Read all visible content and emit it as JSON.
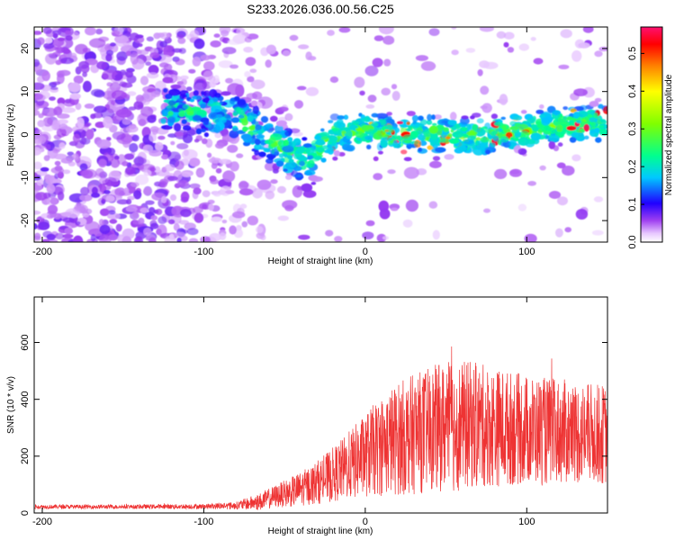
{
  "title": "S233.2026.036.00.56.C25",
  "chart_data": [
    {
      "type": "heatmap",
      "name": "spectrogram",
      "xlabel": "Height of straight line (km)",
      "ylabel": "Frequency (Hz)",
      "xlim": [
        -205,
        150
      ],
      "ylim": [
        -25,
        25
      ],
      "xticks": [
        -200,
        -100,
        0,
        100
      ],
      "yticks": [
        -20,
        -10,
        0,
        10,
        20
      ],
      "colorbar": {
        "label": "Normalized spectral amplitude",
        "range": [
          0.0,
          0.57
        ],
        "ticks": [
          0.0,
          0.1,
          0.2,
          0.3,
          0.4,
          0.5
        ],
        "colors": [
          "#ffffff",
          "#d9a6ff",
          "#8a2be2",
          "#0000ff",
          "#00bfff",
          "#00ff80",
          "#7fff00",
          "#ffff00",
          "#ff8c00",
          "#ff0000",
          "#ff1493"
        ]
      },
      "signal_track": {
        "x": [
          -120,
          -100,
          -80,
          -60,
          -45,
          -35,
          -20,
          0,
          20,
          40,
          60,
          80,
          100,
          120,
          150
        ],
        "frequency": [
          6,
          5,
          4,
          -1,
          -5,
          -6,
          0,
          1,
          0,
          0,
          -0.5,
          0,
          1,
          2,
          3
        ]
      }
    },
    {
      "type": "line",
      "name": "snr",
      "xlabel": "Height of straight line (km)",
      "ylabel": "SNR (10 * v/v)",
      "xlim": [
        -205,
        150
      ],
      "ylim": [
        0,
        760
      ],
      "xticks": [
        -200,
        -100,
        0,
        100
      ],
      "yticks": [
        0,
        200,
        400,
        600
      ],
      "color": "#ee3333",
      "envelope": {
        "x": [
          -205,
          -150,
          -100,
          -80,
          -65,
          -55,
          -45,
          -35,
          -25,
          -15,
          -5,
          5,
          15,
          25,
          35,
          45,
          55,
          65,
          75,
          85,
          95,
          105,
          115,
          125,
          135,
          150
        ],
        "mean": [
          22,
          22,
          23,
          26,
          40,
          60,
          75,
          95,
          120,
          150,
          185,
          220,
          250,
          270,
          285,
          300,
          305,
          310,
          305,
          300,
          295,
          290,
          285,
          285,
          280,
          275
        ],
        "spread": [
          8,
          8,
          10,
          15,
          35,
          45,
          60,
          75,
          95,
          120,
          150,
          180,
          210,
          230,
          240,
          250,
          260,
          250,
          240,
          230,
          220,
          215,
          210,
          205,
          200,
          195
        ]
      }
    }
  ]
}
